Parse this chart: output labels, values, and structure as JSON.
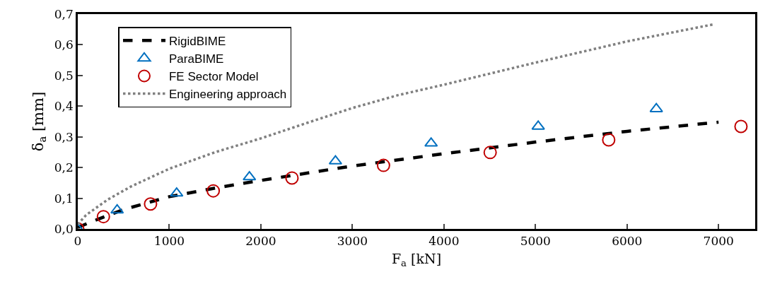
{
  "chart_data": {
    "type": "scatter",
    "xlabel": "F$_{a}$ [kN]",
    "ylabel": "δ$_{a}$ [mm]",
    "xlim": [
      0,
      7400
    ],
    "xticks": [
      0,
      1000,
      2000,
      3000,
      4000,
      5000,
      6000,
      7000
    ],
    "ylim": [
      0,
      0.7
    ],
    "yticks": [
      {
        "value": 0,
        "label": "0,0"
      },
      {
        "value": 0.1,
        "label": "0,1"
      },
      {
        "value": 0.2,
        "label": "0,2"
      },
      {
        "value": 0.3,
        "label": "0,3"
      },
      {
        "value": 0.4,
        "label": "0,4"
      },
      {
        "value": 0.5,
        "label": "0,5"
      },
      {
        "value": 0.6,
        "label": "0,6"
      },
      {
        "value": 0.7,
        "label": "0,7"
      }
    ],
    "grid": false,
    "legend": "top left",
    "series": [
      {
        "name": "RigidBIME",
        "type": "line",
        "line_style": "dashed",
        "color": "#000000",
        "x": [
          0,
          250,
          500,
          1000,
          1500,
          2000,
          3000,
          4000,
          5000,
          6000,
          7000
        ],
        "values": [
          0.005,
          0.035,
          0.063,
          0.105,
          0.133,
          0.158,
          0.205,
          0.245,
          0.283,
          0.318,
          0.348
        ]
      },
      {
        "name": "ParaBIME",
        "marker": "triangle",
        "color": "#0070c0",
        "x": [
          0,
          430,
          1080,
          1875,
          2815,
          3860,
          5030,
          6320
        ],
        "values": [
          0,
          0.061,
          0.116,
          0.169,
          0.221,
          0.279,
          0.334,
          0.391
        ]
      },
      {
        "name": "FE Sector Model",
        "marker": "circle",
        "color": "#c00000",
        "x": [
          0,
          280,
          795,
          1480,
          2340,
          3340,
          4505,
          5800,
          7245
        ],
        "values": [
          0,
          0.04,
          0.081,
          0.124,
          0.166,
          0.207,
          0.249,
          0.29,
          0.334
        ]
      },
      {
        "name": "Engineering approach",
        "type": "line",
        "line_style": "dotted",
        "color": "#808080",
        "x": [
          0,
          90,
          330,
          580,
          1000,
          1500,
          2000,
          2500,
          3000,
          3500,
          4000,
          5000,
          6000,
          6950
        ],
        "values": [
          0.015,
          0.045,
          0.096,
          0.138,
          0.196,
          0.25,
          0.295,
          0.345,
          0.394,
          0.436,
          0.47,
          0.542,
          0.611,
          0.667
        ]
      }
    ]
  }
}
